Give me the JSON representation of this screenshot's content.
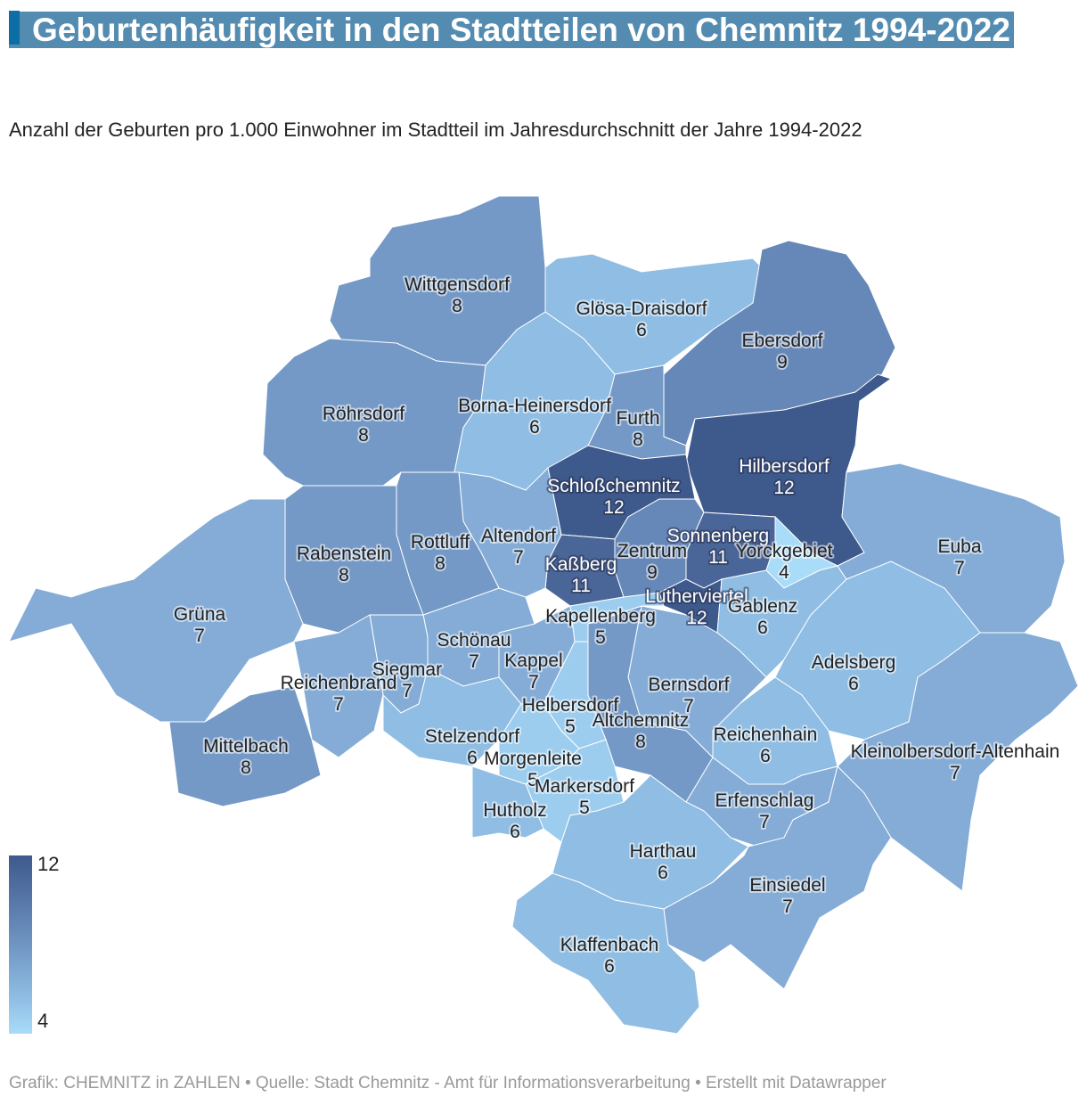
{
  "header": {
    "title": "Geburtenhäufigkeit in den Stadtteilen von Chemnitz 1994-2022",
    "subtitle": "Anzahl der Geburten pro 1.000 Einwohner im Stadtteil im Jahresdurchschnitt der Jahre 1994-2022",
    "title_background": "#548cb1",
    "title_marker_color": "#0d6ea6"
  },
  "legend": {
    "max_label": "12",
    "min_label": "4",
    "color_max": "#3e5a8d",
    "color_min": "#a8dcf8"
  },
  "chart_data": {
    "type": "choropleth",
    "value_range": [
      4,
      12
    ],
    "regions": [
      {
        "name": "Wittgensdorf",
        "value": 8
      },
      {
        "name": "Glösa-Draisdorf",
        "value": 6
      },
      {
        "name": "Ebersdorf",
        "value": 9
      },
      {
        "name": "Röhrsdorf",
        "value": 8
      },
      {
        "name": "Borna-Heinersdorf",
        "value": 6
      },
      {
        "name": "Furth",
        "value": 8
      },
      {
        "name": "Hilbersdorf",
        "value": 12
      },
      {
        "name": "Schloßchemnitz",
        "value": 12
      },
      {
        "name": "Zentrum",
        "value": 9
      },
      {
        "name": "Sonnenberg",
        "value": 11
      },
      {
        "name": "Yorckgebiet",
        "value": 4
      },
      {
        "name": "Kaßberg",
        "value": 11
      },
      {
        "name": "Lutherviertel",
        "value": 12
      },
      {
        "name": "Gablenz",
        "value": 6
      },
      {
        "name": "Euba",
        "value": 7
      },
      {
        "name": "Adelsberg",
        "value": 6
      },
      {
        "name": "Kleinolbersdorf-Altenhain",
        "value": 7
      },
      {
        "name": "Reichenhain",
        "value": 6
      },
      {
        "name": "Erfenschlag",
        "value": 7
      },
      {
        "name": "Einsiedel",
        "value": 7
      },
      {
        "name": "Bernsdorf",
        "value": 7
      },
      {
        "name": "Altchemnitz",
        "value": 8
      },
      {
        "name": "Kapellenberg",
        "value": 5
      },
      {
        "name": "Helbersdorf",
        "value": 5
      },
      {
        "name": "Kappel",
        "value": 7
      },
      {
        "name": "Schönau",
        "value": 7
      },
      {
        "name": "Altendorf",
        "value": 7
      },
      {
        "name": "Rottluff",
        "value": 8
      },
      {
        "name": "Rabenstein",
        "value": 8
      },
      {
        "name": "Grüna",
        "value": 7
      },
      {
        "name": "Siegmar",
        "value": 7
      },
      {
        "name": "Reichenbrand",
        "value": 7
      },
      {
        "name": "Mittelbach",
        "value": 8
      },
      {
        "name": "Stelzendorf",
        "value": 6
      },
      {
        "name": "Morgenleite",
        "value": 5
      },
      {
        "name": "Markersdorf",
        "value": 5
      },
      {
        "name": "Hutholz",
        "value": 6
      },
      {
        "name": "Harthau",
        "value": 6
      },
      {
        "name": "Klaffenbach",
        "value": 6
      }
    ]
  },
  "footer": "Grafik: CHEMNITZ in ZAHLEN • Quelle: Stadt Chemnitz - Amt für Informationsverarbeitung • Erstellt mit Datawrapper"
}
